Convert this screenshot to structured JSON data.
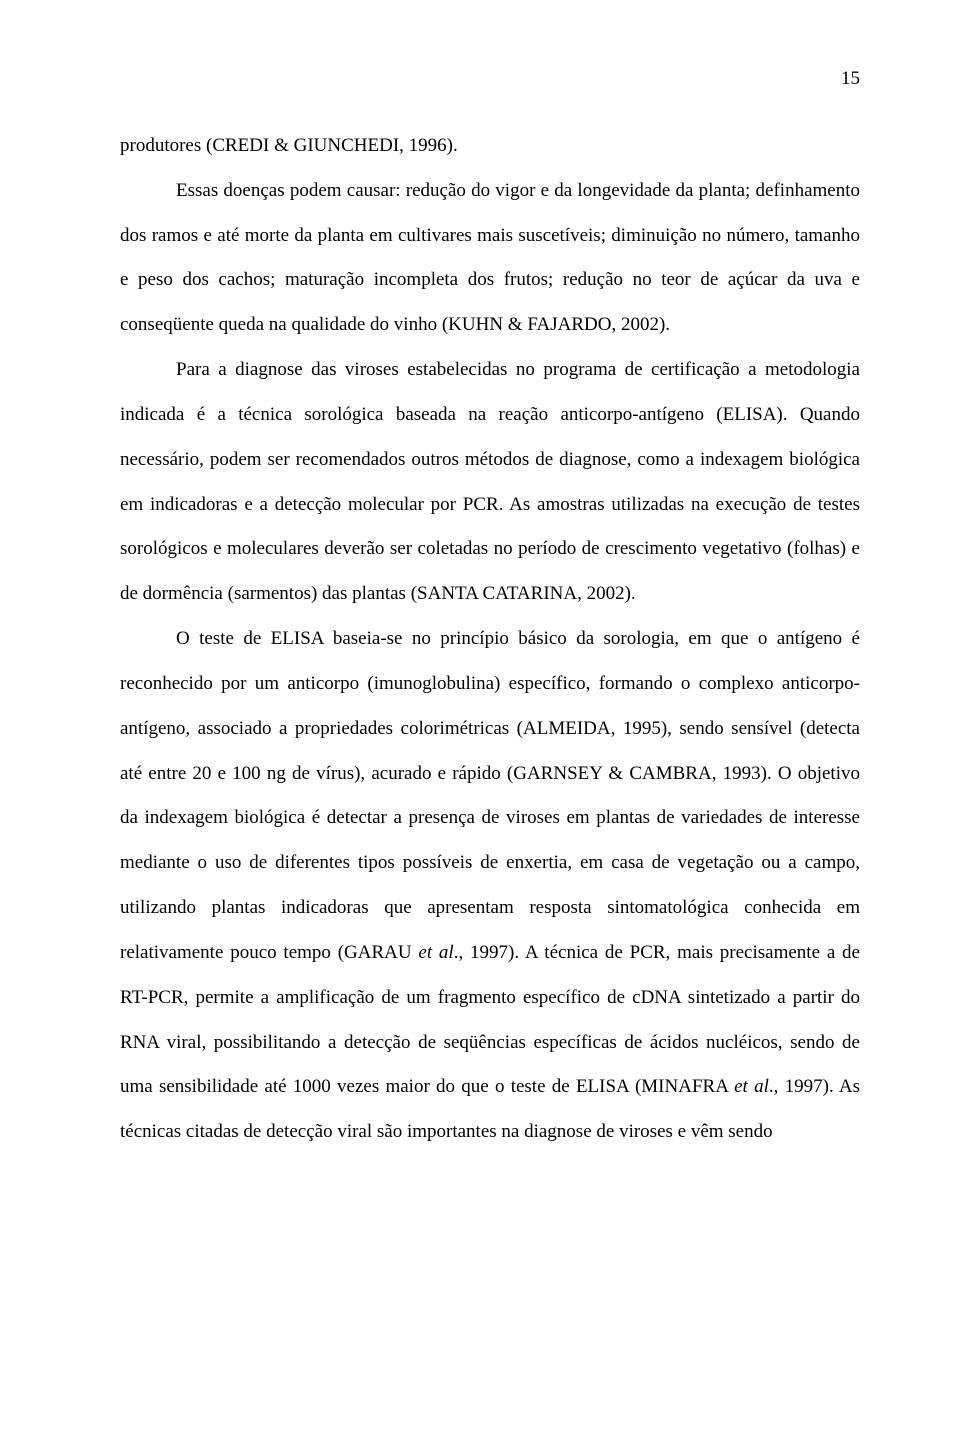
{
  "page_number": "15",
  "paragraphs": {
    "p1": "produtores (CREDI & GIUNCHEDI, 1996).",
    "p2": "Essas doenças podem causar: redução do vigor e da longevidade da planta; definhamento dos ramos e até morte da planta em cultivares mais suscetíveis; diminuição no número, tamanho e peso dos cachos; maturação incompleta dos frutos; redução no teor de açúcar da uva e conseqüente queda na qualidade do vinho (KUHN & FAJARDO, 2002).",
    "p3": "Para a diagnose das viroses estabelecidas no programa de certificação a metodologia indicada é a técnica sorológica baseada na reação anticorpo-antígeno (ELISA). Quando necessário, podem ser recomendados outros métodos de diagnose, como a indexagem biológica em indicadoras e a detecção molecular por PCR. As amostras utilizadas na execução de testes sorológicos e moleculares deverão ser coletadas no período de crescimento vegetativo (folhas) e de dormência (sarmentos) das plantas (SANTA CATARINA, 2002).",
    "p4_part1": "O teste de ELISA baseia-se no princípio básico da sorologia, em que o antígeno é reconhecido por um anticorpo (imunoglobulina) específico, formando o complexo anticorpo-antígeno, associado a propriedades colorimétricas (ALMEIDA, 1995), sendo sensível (detecta até entre 20 e 100 ng de vírus), acurado e rápido (GARNSEY & CAMBRA, 1993). O objetivo da indexagem biológica é detectar a presença de viroses em plantas de variedades de interesse mediante o uso de diferentes tipos possíveis de enxertia, em casa de vegetação ou a campo, utilizando plantas indicadoras que apresentam resposta sintomatológica conhecida em relativamente pouco tempo (GARAU ",
    "p4_etal1": "et al",
    "p4_part2": "., 1997). A técnica de PCR, mais precisamente a de RT-PCR, permite a amplificação de um fragmento específico de cDNA sintetizado a partir do RNA viral, possibilitando a detecção de seqüências específicas de ácidos nucléicos, sendo de uma sensibilidade até 1000 vezes maior do que o teste de ELISA (MINAFRA ",
    "p4_etal2": "et al",
    "p4_part3": "., 1997). As técnicas citadas de detecção viral são importantes na diagnose de viroses e vêm sendo"
  }
}
